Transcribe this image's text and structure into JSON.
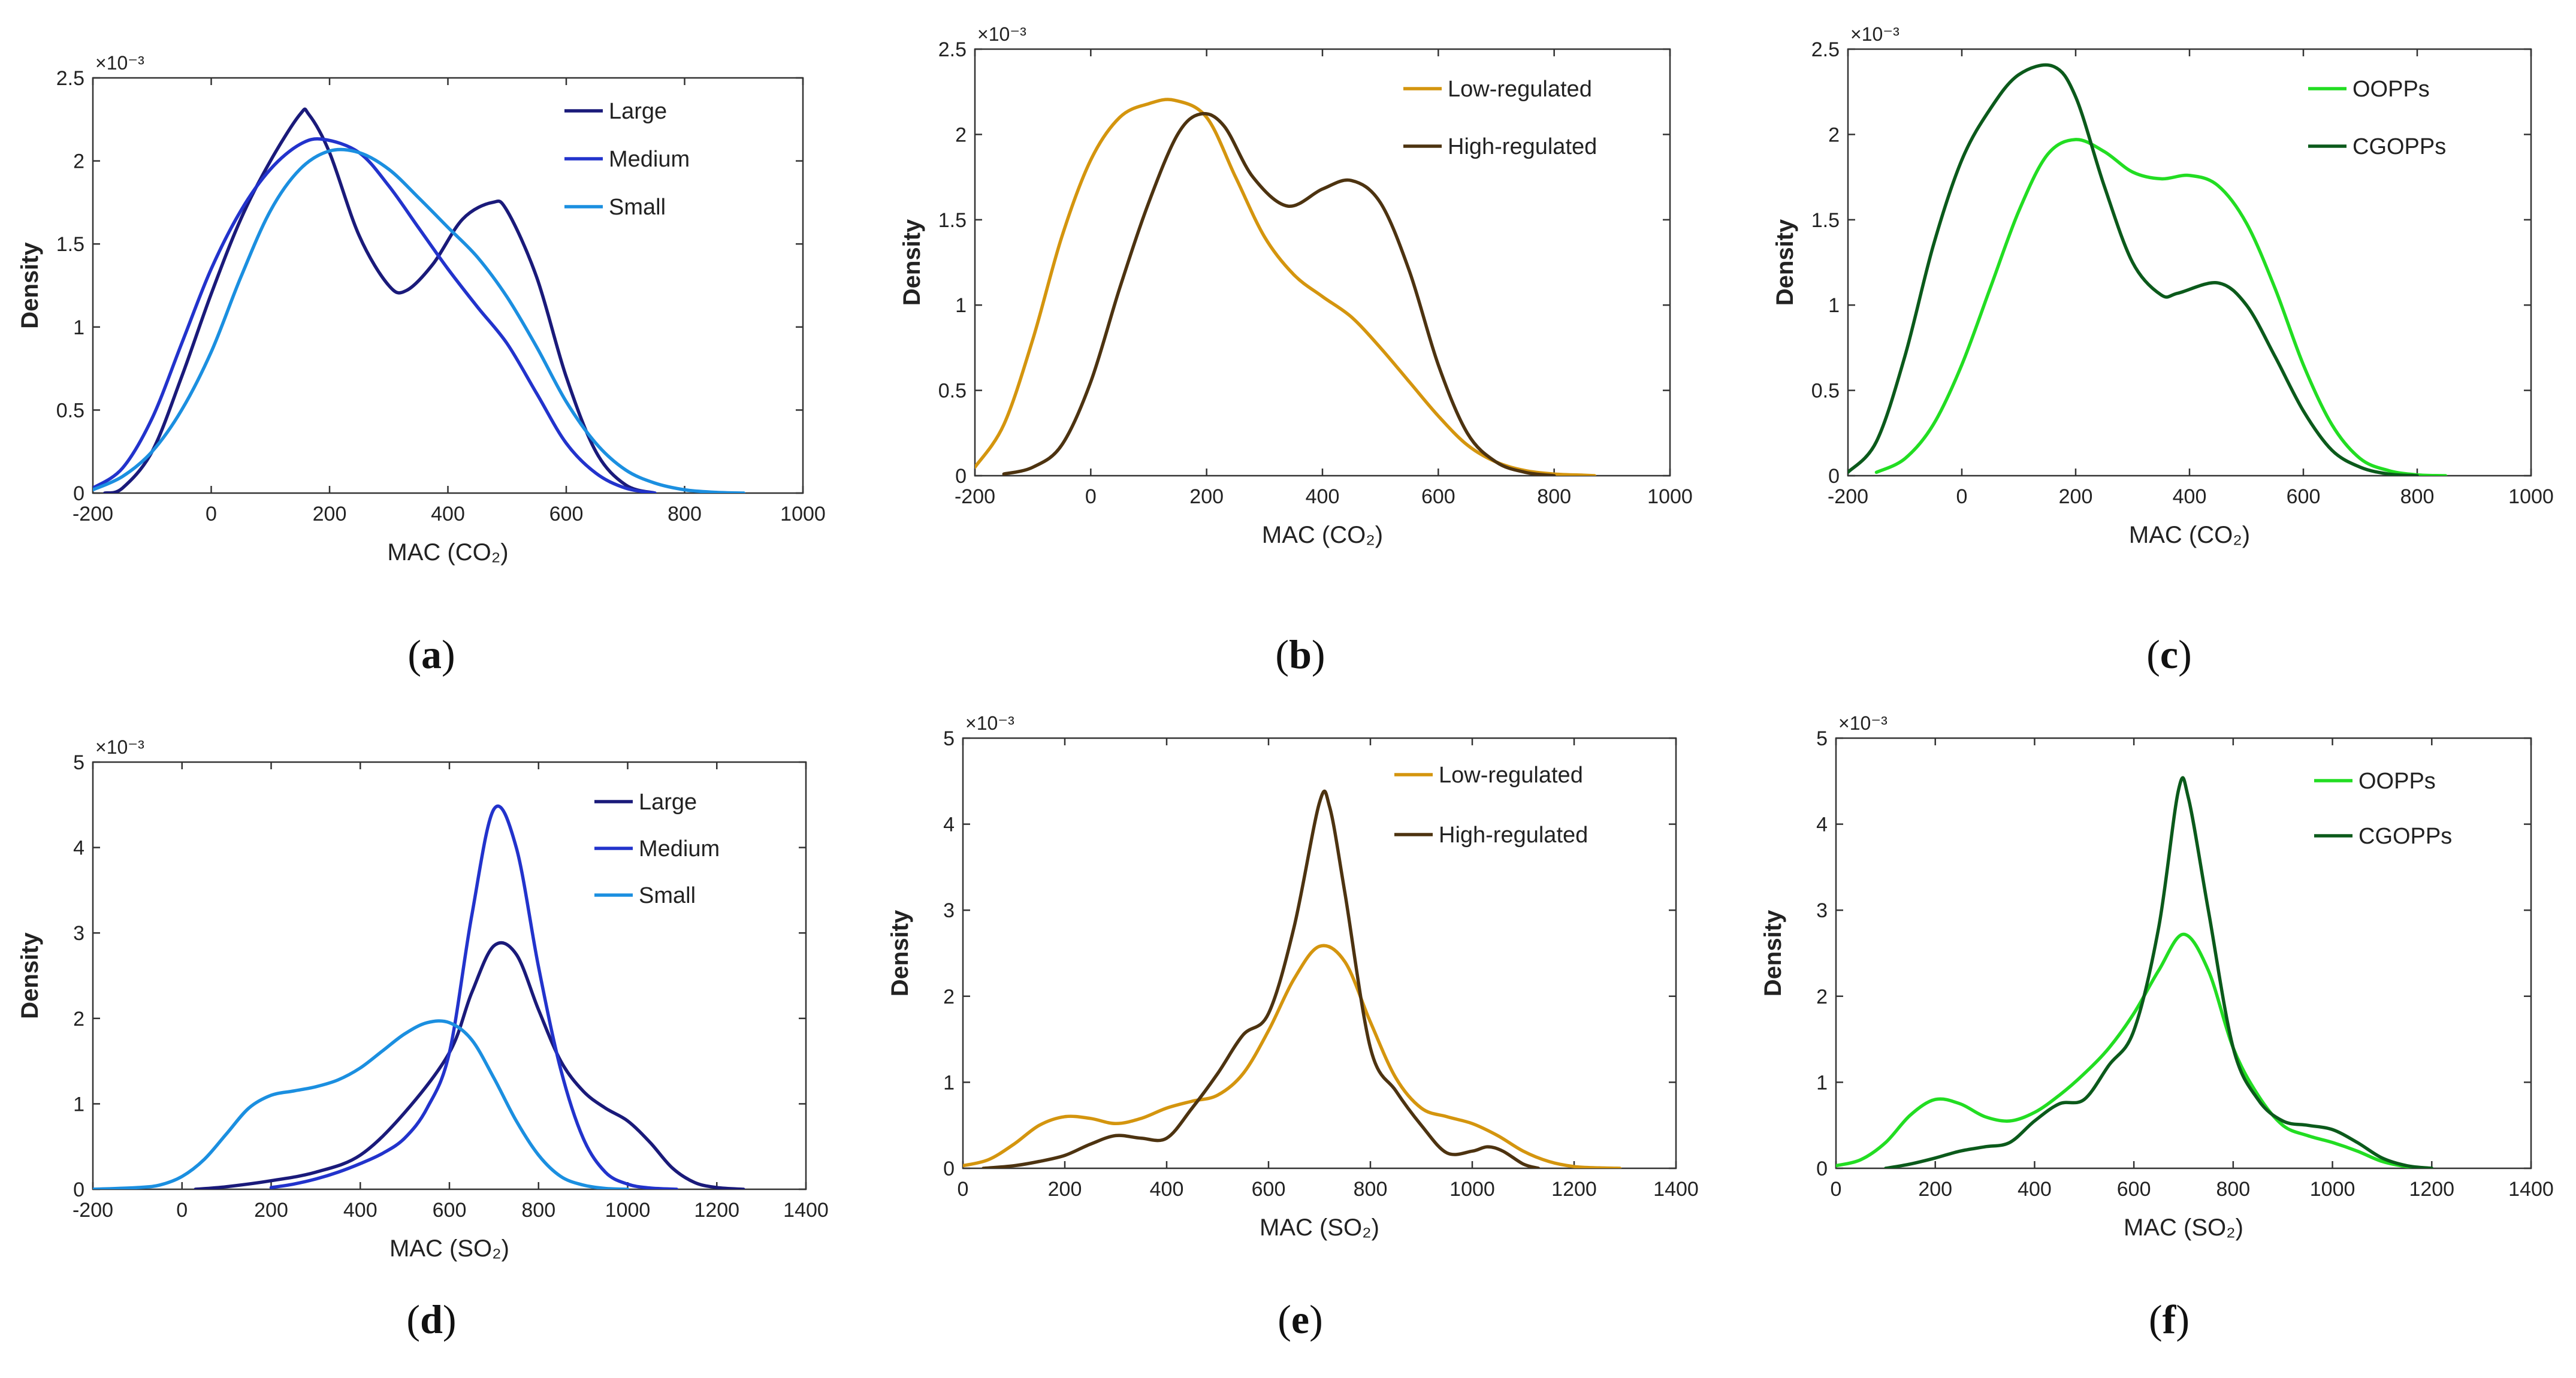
{
  "figure": {
    "background": "#ffffff",
    "density_label": "Density",
    "exponent_label": "×10⁻³"
  },
  "chart_data": [
    {
      "type": "line",
      "panel": "(a)",
      "panel_letter": "a",
      "xlabel": "MAC (CO₂)",
      "ylabel": "Density",
      "xlim": [
        -200,
        1000
      ],
      "ylim": [
        0,
        2.5
      ],
      "y_multiplier": "×10⁻³",
      "xticks": [
        -200,
        0,
        200,
        400,
        600,
        800,
        1000
      ],
      "yticks": [
        0,
        0.5,
        1,
        1.5,
        2,
        2.5
      ],
      "legend_position": "top-right",
      "grid": false,
      "series": [
        {
          "name": "Large",
          "color": "#1a1a7a",
          "x": [
            -180,
            -150,
            -100,
            -50,
            0,
            50,
            100,
            150,
            165,
            200,
            250,
            300,
            330,
            375,
            425,
            475,
            500,
            550,
            600,
            650,
            700,
            750
          ],
          "y": [
            0,
            0.03,
            0.25,
            0.7,
            1.2,
            1.65,
            2.0,
            2.28,
            2.28,
            2.05,
            1.55,
            1.25,
            1.22,
            1.38,
            1.65,
            1.75,
            1.7,
            1.3,
            0.7,
            0.25,
            0.05,
            0
          ]
        },
        {
          "name": "Medium",
          "color": "#2233cc",
          "x": [
            -200,
            -150,
            -100,
            -50,
            0,
            50,
            100,
            150,
            190,
            250,
            300,
            350,
            400,
            450,
            500,
            550,
            600,
            650,
            700,
            750
          ],
          "y": [
            0.03,
            0.15,
            0.45,
            0.9,
            1.35,
            1.7,
            1.95,
            2.1,
            2.13,
            2.05,
            1.85,
            1.6,
            1.35,
            1.12,
            0.9,
            0.6,
            0.3,
            0.12,
            0.03,
            0
          ]
        },
        {
          "name": "Small",
          "color": "#1b8fe0",
          "x": [
            -200,
            -150,
            -100,
            -50,
            0,
            50,
            100,
            150,
            200,
            250,
            300,
            350,
            400,
            450,
            500,
            550,
            600,
            650,
            700,
            750,
            800,
            850,
            900
          ],
          "y": [
            0.02,
            0.1,
            0.25,
            0.5,
            0.85,
            1.3,
            1.7,
            1.95,
            2.06,
            2.05,
            1.95,
            1.78,
            1.6,
            1.42,
            1.18,
            0.88,
            0.55,
            0.3,
            0.14,
            0.06,
            0.02,
            0.005,
            0
          ]
        }
      ]
    },
    {
      "type": "line",
      "panel": "(b)",
      "panel_letter": "b",
      "xlabel": "MAC (CO₂)",
      "ylabel": "Density",
      "xlim": [
        -200,
        1000
      ],
      "ylim": [
        0,
        2.5
      ],
      "y_multiplier": "×10⁻³",
      "xticks": [
        -200,
        0,
        200,
        400,
        600,
        800,
        1000
      ],
      "yticks": [
        0,
        0.5,
        1,
        1.5,
        2,
        2.5
      ],
      "legend_position": "top-right",
      "grid": false,
      "series": [
        {
          "name": "Low-regulated",
          "color": "#d4950e",
          "x": [
            -200,
            -150,
            -100,
            -50,
            0,
            50,
            100,
            145,
            200,
            250,
            300,
            350,
            400,
            450,
            500,
            550,
            600,
            650,
            700,
            750,
            800,
            850,
            870
          ],
          "y": [
            0.05,
            0.3,
            0.8,
            1.4,
            1.85,
            2.1,
            2.18,
            2.2,
            2.1,
            1.75,
            1.4,
            1.18,
            1.05,
            0.93,
            0.75,
            0.55,
            0.35,
            0.18,
            0.08,
            0.03,
            0.01,
            0.003,
            0
          ]
        },
        {
          "name": "High-regulated",
          "color": "#4d3310",
          "x": [
            -150,
            -100,
            -50,
            0,
            50,
            100,
            150,
            190,
            230,
            280,
            340,
            400,
            450,
            500,
            550,
            600,
            650,
            700,
            750,
            800
          ],
          "y": [
            0.01,
            0.05,
            0.18,
            0.55,
            1.1,
            1.6,
            2.0,
            2.12,
            2.05,
            1.75,
            1.58,
            1.68,
            1.73,
            1.6,
            1.2,
            0.65,
            0.25,
            0.08,
            0.02,
            0
          ]
        }
      ]
    },
    {
      "type": "line",
      "panel": "(c)",
      "panel_letter": "c",
      "xlabel": "MAC (CO₂)",
      "ylabel": "Density",
      "xlim": [
        -200,
        1000
      ],
      "ylim": [
        0,
        2.5
      ],
      "y_multiplier": "×10⁻³",
      "xticks": [
        -200,
        0,
        200,
        400,
        600,
        800,
        1000
      ],
      "yticks": [
        0,
        0.5,
        1,
        1.5,
        2,
        2.5
      ],
      "legend_position": "top-right",
      "grid": false,
      "series": [
        {
          "name": "OOPPs",
          "color": "#22dd22",
          "x": [
            -150,
            -100,
            -50,
            0,
            50,
            100,
            150,
            200,
            250,
            300,
            350,
            400,
            450,
            500,
            550,
            600,
            650,
            700,
            750,
            800,
            850
          ],
          "y": [
            0.02,
            0.1,
            0.3,
            0.65,
            1.1,
            1.55,
            1.88,
            1.97,
            1.9,
            1.78,
            1.74,
            1.76,
            1.7,
            1.48,
            1.1,
            0.65,
            0.3,
            0.1,
            0.03,
            0.005,
            0
          ]
        },
        {
          "name": "CGOPPs",
          "color": "#0b5a1b",
          "x": [
            -200,
            -150,
            -100,
            -50,
            0,
            50,
            100,
            160,
            200,
            250,
            300,
            350,
            380,
            450,
            500,
            550,
            600,
            650,
            700,
            750,
            800
          ],
          "y": [
            0.02,
            0.2,
            0.7,
            1.35,
            1.85,
            2.15,
            2.35,
            2.4,
            2.22,
            1.7,
            1.25,
            1.06,
            1.07,
            1.13,
            1.0,
            0.7,
            0.38,
            0.15,
            0.05,
            0.01,
            0
          ]
        }
      ]
    },
    {
      "type": "line",
      "panel": "(d)",
      "panel_letter": "d",
      "xlabel": "MAC (SO₂)",
      "ylabel": "Density",
      "xlim": [
        -200,
        1400
      ],
      "ylim": [
        0,
        5
      ],
      "y_multiplier": "×10⁻³",
      "xticks": [
        -200,
        0,
        200,
        400,
        600,
        800,
        1000,
        1200,
        1400
      ],
      "yticks": [
        0,
        1,
        2,
        3,
        4,
        5
      ],
      "legend_position": "top-right",
      "grid": false,
      "series": [
        {
          "name": "Large",
          "color": "#1a1a7a",
          "x": [
            30,
            100,
            200,
            300,
            400,
            500,
            600,
            650,
            700,
            750,
            800,
            850,
            900,
            950,
            1000,
            1050,
            1100,
            1150,
            1200,
            1260
          ],
          "y": [
            0,
            0.03,
            0.1,
            0.2,
            0.4,
            0.9,
            1.6,
            2.3,
            2.85,
            2.75,
            2.1,
            1.5,
            1.15,
            0.95,
            0.8,
            0.55,
            0.25,
            0.08,
            0.02,
            0
          ]
        },
        {
          "name": "Medium",
          "color": "#2233cc",
          "x": [
            200,
            250,
            300,
            350,
            400,
            450,
            500,
            550,
            600,
            650,
            700,
            750,
            800,
            850,
            900,
            950,
            1000,
            1050,
            1110
          ],
          "y": [
            0.02,
            0.06,
            0.12,
            0.2,
            0.3,
            0.42,
            0.6,
            0.95,
            1.6,
            3.2,
            4.45,
            4.0,
            2.6,
            1.4,
            0.6,
            0.2,
            0.06,
            0.015,
            0
          ]
        },
        {
          "name": "Small",
          "color": "#1b8fe0",
          "x": [
            -200,
            -100,
            -50,
            0,
            50,
            100,
            150,
            200,
            250,
            300,
            350,
            400,
            450,
            500,
            550,
            600,
            650,
            700,
            750,
            800,
            850,
            900,
            950,
            1000
          ],
          "y": [
            0,
            0.02,
            0.05,
            0.15,
            0.35,
            0.65,
            0.95,
            1.1,
            1.15,
            1.2,
            1.28,
            1.42,
            1.62,
            1.82,
            1.95,
            1.95,
            1.75,
            1.3,
            0.8,
            0.4,
            0.15,
            0.05,
            0.01,
            0
          ]
        }
      ]
    },
    {
      "type": "line",
      "panel": "(e)",
      "panel_letter": "e",
      "xlabel": "MAC (SO₂)",
      "ylabel": "Density",
      "xlim": [
        0,
        1400
      ],
      "ylim": [
        0,
        5
      ],
      "y_multiplier": "×10⁻³",
      "xticks": [
        0,
        200,
        400,
        600,
        800,
        1000,
        1200,
        1400
      ],
      "yticks": [
        0,
        1,
        2,
        3,
        4,
        5
      ],
      "legend_position": "top-right",
      "grid": false,
      "series": [
        {
          "name": "Low-regulated",
          "color": "#d4950e",
          "x": [
            0,
            50,
            100,
            150,
            200,
            250,
            300,
            350,
            400,
            450,
            500,
            550,
            600,
            650,
            700,
            750,
            800,
            850,
            900,
            950,
            1000,
            1050,
            1100,
            1150,
            1200,
            1250,
            1290
          ],
          "y": [
            0.03,
            0.1,
            0.28,
            0.5,
            0.6,
            0.58,
            0.52,
            0.58,
            0.7,
            0.78,
            0.85,
            1.1,
            1.6,
            2.2,
            2.58,
            2.4,
            1.7,
            1.05,
            0.7,
            0.6,
            0.52,
            0.38,
            0.2,
            0.08,
            0.02,
            0.005,
            0
          ]
        },
        {
          "name": "High-regulated",
          "color": "#4d3310",
          "x": [
            40,
            100,
            150,
            200,
            250,
            300,
            350,
            400,
            450,
            500,
            550,
            600,
            650,
            700,
            720,
            750,
            800,
            850,
            900,
            950,
            1000,
            1030,
            1060,
            1100,
            1130
          ],
          "y": [
            0,
            0.03,
            0.08,
            0.15,
            0.28,
            0.38,
            0.35,
            0.35,
            0.7,
            1.1,
            1.55,
            1.8,
            2.8,
            4.25,
            4.2,
            3.2,
            1.4,
            0.9,
            0.5,
            0.18,
            0.2,
            0.25,
            0.2,
            0.05,
            0
          ]
        }
      ]
    },
    {
      "type": "line",
      "panel": "(f)",
      "panel_letter": "f",
      "xlabel": "MAC (SO₂)",
      "ylabel": "Density",
      "xlim": [
        0,
        1400
      ],
      "ylim": [
        0,
        5
      ],
      "y_multiplier": "×10⁻³",
      "xticks": [
        0,
        200,
        400,
        600,
        800,
        1000,
        1200,
        1400
      ],
      "yticks": [
        0,
        1,
        2,
        3,
        4,
        5
      ],
      "legend_position": "top-right",
      "grid": false,
      "series": [
        {
          "name": "OOPPs",
          "color": "#22dd22",
          "x": [
            0,
            50,
            100,
            150,
            200,
            250,
            300,
            350,
            400,
            450,
            500,
            550,
            600,
            650,
            700,
            750,
            800,
            850,
            900,
            950,
            1000,
            1050,
            1100,
            1150,
            1200
          ],
          "y": [
            0.03,
            0.1,
            0.3,
            0.62,
            0.8,
            0.75,
            0.6,
            0.55,
            0.65,
            0.85,
            1.1,
            1.4,
            1.8,
            2.3,
            2.72,
            2.3,
            1.4,
            0.85,
            0.5,
            0.38,
            0.3,
            0.2,
            0.08,
            0.02,
            0
          ]
        },
        {
          "name": "CGOPPs",
          "color": "#0b5a1b",
          "x": [
            100,
            150,
            200,
            250,
            300,
            350,
            400,
            450,
            500,
            550,
            600,
            650,
            690,
            710,
            750,
            800,
            850,
            900,
            950,
            1000,
            1050,
            1100,
            1150,
            1200
          ],
          "y": [
            0,
            0.05,
            0.12,
            0.2,
            0.25,
            0.3,
            0.55,
            0.75,
            0.8,
            1.2,
            1.6,
            2.8,
            4.4,
            4.3,
            3.0,
            1.4,
            0.8,
            0.55,
            0.5,
            0.45,
            0.3,
            0.12,
            0.03,
            0
          ]
        }
      ]
    }
  ]
}
